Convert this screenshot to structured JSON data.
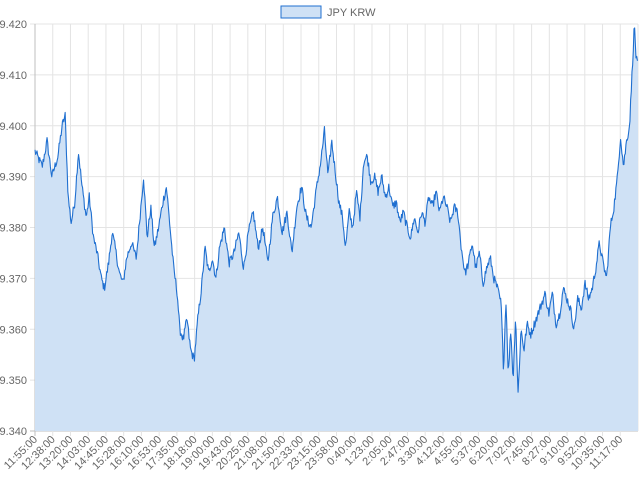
{
  "chart_data": {
    "type": "area",
    "series": [
      {
        "name": "JPY KRW",
        "line_color": "#1f6fd0",
        "fill_color": "#cfe1f5"
      }
    ],
    "x_tick_labels": [
      "11:55:00",
      "12:38:00",
      "13:20:00",
      "14:03:00",
      "14:45:00",
      "15:28:00",
      "16:10:00",
      "16:53:00",
      "17:35:00",
      "18:18:00",
      "19:00:00",
      "19:43:00",
      "20:25:00",
      "21:08:00",
      "21:50:00",
      "22:33:00",
      "23:15:00",
      "23:58:00",
      "0:40:00",
      "1:23:00",
      "2:05:00",
      "2:47:00",
      "3:30:00",
      "4:12:00",
      "4:55:00",
      "5:37:00",
      "6:20:00",
      "7:02:00",
      "7:45:00",
      "8:27:00",
      "9:10:00",
      "9:52:00",
      "10:35:00",
      "11:17:00"
    ],
    "y_tick_labels": [
      "9.340",
      "9.350",
      "9.360",
      "9.370",
      "9.380",
      "9.390",
      "9.400",
      "9.410",
      "9.420"
    ],
    "ylim": [
      9.34,
      9.42
    ],
    "grid": true,
    "legend_position": "top",
    "keypoints": [
      [
        0.0,
        9.395
      ],
      [
        0.012,
        9.392
      ],
      [
        0.02,
        9.397
      ],
      [
        0.028,
        9.39
      ],
      [
        0.038,
        9.394
      ],
      [
        0.045,
        9.4
      ],
      [
        0.05,
        9.402
      ],
      [
        0.055,
        9.386
      ],
      [
        0.06,
        9.381
      ],
      [
        0.066,
        9.385
      ],
      [
        0.072,
        9.395
      ],
      [
        0.078,
        9.388
      ],
      [
        0.085,
        9.382
      ],
      [
        0.09,
        9.386
      ],
      [
        0.097,
        9.378
      ],
      [
        0.103,
        9.375
      ],
      [
        0.11,
        9.37
      ],
      [
        0.115,
        9.368
      ],
      [
        0.122,
        9.373
      ],
      [
        0.128,
        9.379
      ],
      [
        0.133,
        9.376
      ],
      [
        0.14,
        9.371
      ],
      [
        0.146,
        9.369
      ],
      [
        0.152,
        9.374
      ],
      [
        0.16,
        9.377
      ],
      [
        0.168,
        9.374
      ],
      [
        0.174,
        9.382
      ],
      [
        0.18,
        9.39
      ],
      [
        0.186,
        9.378
      ],
      [
        0.192,
        9.384
      ],
      [
        0.198,
        9.376
      ],
      [
        0.205,
        9.38
      ],
      [
        0.212,
        9.385
      ],
      [
        0.218,
        9.388
      ],
      [
        0.224,
        9.38
      ],
      [
        0.23,
        9.372
      ],
      [
        0.236,
        9.367
      ],
      [
        0.24,
        9.36
      ],
      [
        0.246,
        9.358
      ],
      [
        0.252,
        9.362
      ],
      [
        0.258,
        9.356
      ],
      [
        0.264,
        9.354
      ],
      [
        0.27,
        9.362
      ],
      [
        0.276,
        9.368
      ],
      [
        0.282,
        9.376
      ],
      [
        0.288,
        9.371
      ],
      [
        0.294,
        9.374
      ],
      [
        0.3,
        9.37
      ],
      [
        0.306,
        9.376
      ],
      [
        0.314,
        9.38
      ],
      [
        0.322,
        9.373
      ],
      [
        0.33,
        9.375
      ],
      [
        0.338,
        9.379
      ],
      [
        0.346,
        9.372
      ],
      [
        0.354,
        9.379
      ],
      [
        0.362,
        9.383
      ],
      [
        0.37,
        9.376
      ],
      [
        0.378,
        9.38
      ],
      [
        0.386,
        9.373
      ],
      [
        0.394,
        9.382
      ],
      [
        0.402,
        9.386
      ],
      [
        0.41,
        9.379
      ],
      [
        0.418,
        9.383
      ],
      [
        0.426,
        9.375
      ],
      [
        0.434,
        9.384
      ],
      [
        0.442,
        9.388
      ],
      [
        0.45,
        9.382
      ],
      [
        0.458,
        9.38
      ],
      [
        0.466,
        9.387
      ],
      [
        0.474,
        9.393
      ],
      [
        0.48,
        9.399
      ],
      [
        0.486,
        9.39
      ],
      [
        0.492,
        9.397
      ],
      [
        0.498,
        9.391
      ],
      [
        0.504,
        9.385
      ],
      [
        0.51,
        9.382
      ],
      [
        0.515,
        9.376
      ],
      [
        0.521,
        9.383
      ],
      [
        0.527,
        9.38
      ],
      [
        0.533,
        9.387
      ],
      [
        0.539,
        9.382
      ],
      [
        0.545,
        9.393
      ],
      [
        0.551,
        9.394
      ],
      [
        0.557,
        9.389
      ],
      [
        0.563,
        9.39
      ],
      [
        0.569,
        9.387
      ],
      [
        0.575,
        9.39
      ],
      [
        0.581,
        9.386
      ],
      [
        0.587,
        9.388
      ],
      [
        0.593,
        9.384
      ],
      [
        0.599,
        9.385
      ],
      [
        0.605,
        9.381
      ],
      [
        0.611,
        9.383
      ],
      [
        0.617,
        9.38
      ],
      [
        0.623,
        9.378
      ],
      [
        0.629,
        9.382
      ],
      [
        0.635,
        9.379
      ],
      [
        0.641,
        9.383
      ],
      [
        0.647,
        9.381
      ],
      [
        0.653,
        9.386
      ],
      [
        0.659,
        9.384
      ],
      [
        0.665,
        9.387
      ],
      [
        0.671,
        9.383
      ],
      [
        0.677,
        9.386
      ],
      [
        0.683,
        9.384
      ],
      [
        0.689,
        9.381
      ],
      [
        0.695,
        9.384
      ],
      [
        0.701,
        9.383
      ],
      [
        0.707,
        9.376
      ],
      [
        0.713,
        9.371
      ],
      [
        0.719,
        9.373
      ],
      [
        0.725,
        9.377
      ],
      [
        0.731,
        9.372
      ],
      [
        0.737,
        9.375
      ],
      [
        0.743,
        9.369
      ],
      [
        0.749,
        9.372
      ],
      [
        0.755,
        9.374
      ],
      [
        0.761,
        9.37
      ],
      [
        0.767,
        9.368
      ],
      [
        0.773,
        9.365
      ],
      [
        0.777,
        9.352
      ],
      [
        0.781,
        9.366
      ],
      [
        0.785,
        9.351
      ],
      [
        0.789,
        9.36
      ],
      [
        0.793,
        9.35
      ],
      [
        0.797,
        9.363
      ],
      [
        0.801,
        9.347
      ],
      [
        0.806,
        9.36
      ],
      [
        0.811,
        9.356
      ],
      [
        0.816,
        9.361
      ],
      [
        0.822,
        9.359
      ],
      [
        0.828,
        9.361
      ],
      [
        0.834,
        9.363
      ],
      [
        0.84,
        9.365
      ],
      [
        0.846,
        9.367
      ],
      [
        0.852,
        9.363
      ],
      [
        0.858,
        9.367
      ],
      [
        0.864,
        9.361
      ],
      [
        0.87,
        9.363
      ],
      [
        0.876,
        9.368
      ],
      [
        0.882,
        9.366
      ],
      [
        0.888,
        9.364
      ],
      [
        0.894,
        9.36
      ],
      [
        0.9,
        9.366
      ],
      [
        0.906,
        9.364
      ],
      [
        0.912,
        9.369
      ],
      [
        0.918,
        9.366
      ],
      [
        0.924,
        9.368
      ],
      [
        0.93,
        9.372
      ],
      [
        0.936,
        9.377
      ],
      [
        0.942,
        9.373
      ],
      [
        0.948,
        9.37
      ],
      [
        0.954,
        9.38
      ],
      [
        0.96,
        9.384
      ],
      [
        0.966,
        9.39
      ],
      [
        0.971,
        9.398
      ],
      [
        0.976,
        9.392
      ],
      [
        0.981,
        9.397
      ],
      [
        0.986,
        9.4
      ],
      [
        0.99,
        9.41
      ],
      [
        0.994,
        9.42
      ],
      [
        0.997,
        9.413
      ],
      [
        1.0,
        9.412
      ]
    ]
  }
}
